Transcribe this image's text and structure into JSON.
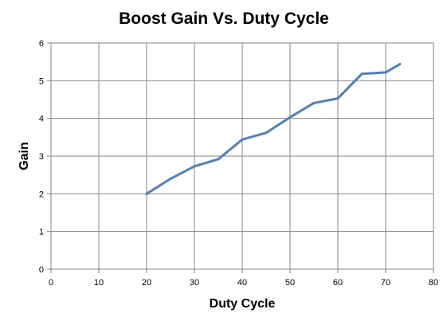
{
  "chart_data": {
    "type": "line",
    "title": "Boost Gain Vs.  Duty Cycle",
    "xlabel": "Duty Cycle",
    "ylabel": "Gain",
    "xlim": [
      0,
      80
    ],
    "ylim": [
      0,
      6
    ],
    "xticks": [
      0,
      10,
      20,
      30,
      40,
      50,
      60,
      70,
      80
    ],
    "yticks": [
      0,
      1,
      2,
      3,
      4,
      5,
      6
    ],
    "grid": true,
    "legend": "none",
    "series": [
      {
        "color": "#4f81bd",
        "x": [
          20,
          25,
          30,
          35,
          40,
          45,
          50,
          55,
          60,
          65,
          70,
          73
        ],
        "y": [
          2.0,
          2.4,
          2.73,
          2.92,
          3.44,
          3.62,
          4.03,
          4.41,
          4.53,
          5.18,
          5.22,
          5.44
        ]
      }
    ]
  }
}
